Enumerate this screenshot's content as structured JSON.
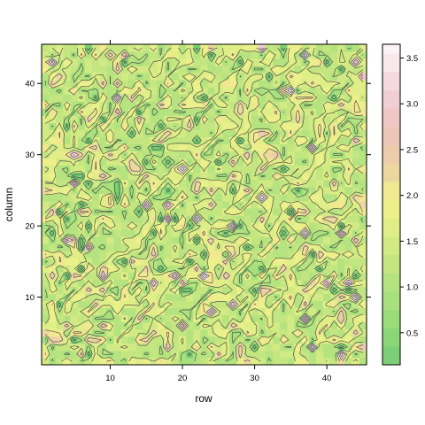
{
  "chart_data": {
    "type": "heatmap",
    "subtype": "levelplot-filled-contour",
    "title": "",
    "xlabel": "row",
    "ylabel": "column",
    "xlim": [
      1,
      45
    ],
    "ylim": [
      1,
      45
    ],
    "x_ticks": [
      10,
      20,
      30,
      40
    ],
    "y_ticks": [
      10,
      20,
      30,
      40
    ],
    "grid": false,
    "legend": "right",
    "grid_size": {
      "rows": 45,
      "columns": 45
    },
    "z_range": [
      0.15,
      3.65
    ],
    "level_breaks": [
      0.15,
      0.35,
      0.55,
      0.75,
      0.95,
      1.15,
      1.35,
      1.55,
      1.75,
      1.95,
      2.15,
      2.35,
      2.55,
      2.75,
      2.95,
      3.15,
      3.35,
      3.55,
      3.65
    ],
    "colorkey": {
      "ticks": [
        0.5,
        1.0,
        1.5,
        2.0,
        2.5,
        3.0,
        3.5
      ],
      "tick_labels": [
        "0.5",
        "1.0",
        "1.5",
        "2.0",
        "2.5",
        "3.0",
        "3.5"
      ],
      "palette": [
        "#7ccf74",
        "#8bd677",
        "#9adb7a",
        "#a7e07d",
        "#b5e37f",
        "#c3e681",
        "#d1ea84",
        "#dfee86",
        "#ecf08a",
        "#f1e890",
        "#ecd7a0",
        "#ebcdac",
        "#edc6b7",
        "#efc7c4",
        "#f1ced2",
        "#f4d9de",
        "#f8e8ec",
        "#fbf4f6"
      ]
    },
    "values_note_z_field": "z is a noisy random field peaking near 3.6; most cells lie between 0.5 and 2.0"
  }
}
